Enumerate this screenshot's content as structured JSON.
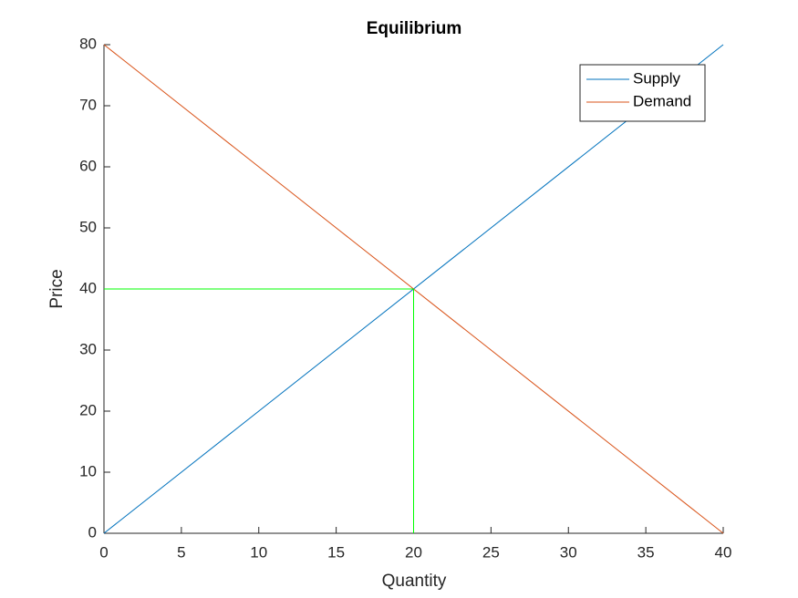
{
  "chart_data": {
    "type": "line",
    "title": "Equilibrium",
    "x_label": "Quantity",
    "y_label": "Price",
    "xlim": [
      0,
      40
    ],
    "xticks": [
      0,
      5,
      10,
      15,
      20,
      25,
      30,
      35,
      40
    ],
    "ylim": [
      0,
      80
    ],
    "yticks": [
      0,
      10,
      20,
      30,
      40,
      50,
      60,
      70,
      80
    ],
    "legend": "top-right",
    "series": [
      {
        "name": "Supply",
        "color": "#0072bd",
        "x": [
          0,
          40
        ],
        "values": [
          0,
          80
        ]
      },
      {
        "name": "Demand",
        "color": "#d95319",
        "x": [
          0,
          40
        ],
        "values": [
          80,
          0
        ]
      },
      {
        "color": "#00ff00",
        "x": [
          0,
          20
        ],
        "values": [
          40,
          40
        ]
      },
      {
        "color": "#00ff00",
        "x": [
          20,
          20
        ],
        "values": [
          0,
          40
        ]
      }
    ]
  }
}
